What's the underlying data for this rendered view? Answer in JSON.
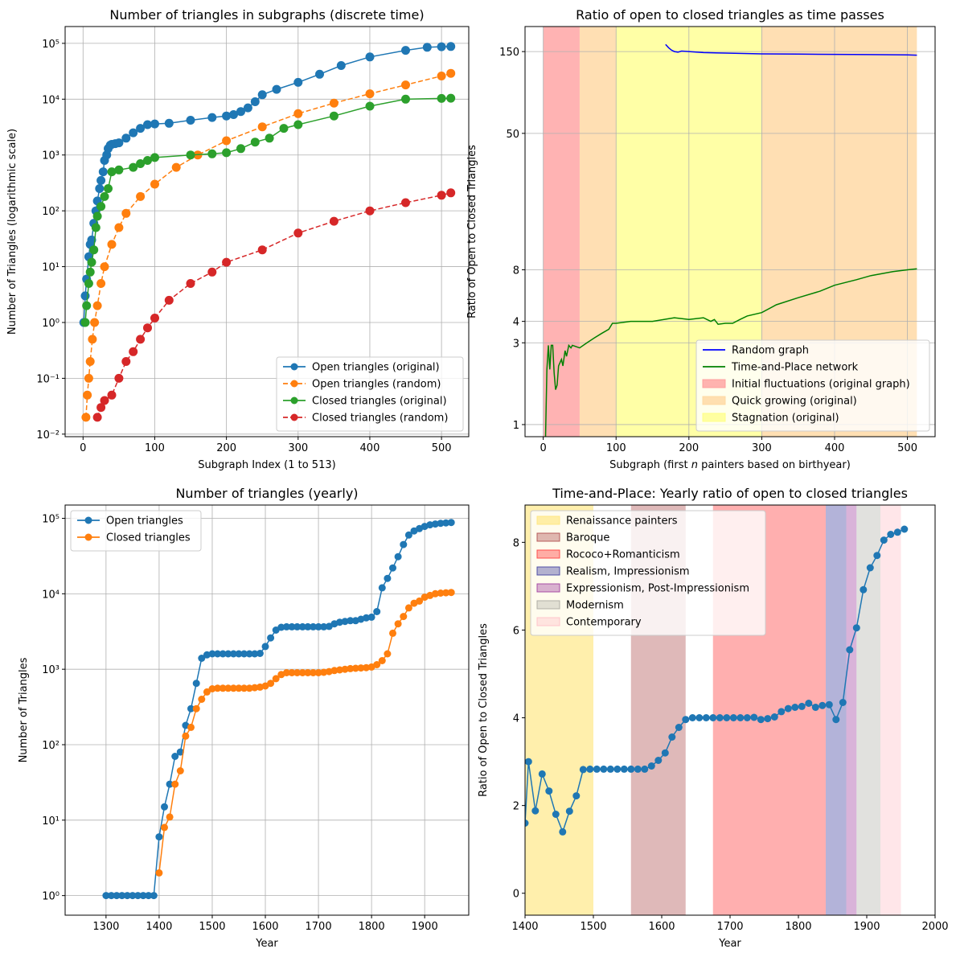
{
  "chart_data": [
    {
      "type": "line",
      "title": "Number of triangles in subgraphs (discrete time)",
      "xlabel": "Subgraph Index (1 to 513)",
      "ylabel": "Number of Triangles (logarithmic scale)",
      "xlim": [
        -25,
        538
      ],
      "ylim": [
        0.009,
        200000
      ],
      "yscale": "log",
      "grid": true,
      "legend_position": "lower right",
      "xticks": [
        0,
        100,
        200,
        300,
        400,
        500
      ],
      "xtick_labels": [
        "0",
        "100",
        "200",
        "300",
        "400",
        "500"
      ],
      "yticks": [
        0.01,
        0.1,
        1,
        10,
        100,
        1000,
        10000,
        100000
      ],
      "ytick_labels": [
        "10⁻²",
        "10⁻¹",
        "10⁰",
        "10¹",
        "10²",
        "10³",
        "10⁴",
        "10⁵"
      ],
      "series": [
        {
          "name": "Open triangles (original)",
          "color": "#1f77b4",
          "style": "solid-marker",
          "x": [
            1,
            3,
            5,
            8,
            10,
            12,
            15,
            18,
            20,
            23,
            25,
            28,
            30,
            33,
            35,
            38,
            40,
            45,
            50,
            60,
            70,
            80,
            90,
            100,
            120,
            150,
            180,
            200,
            210,
            220,
            230,
            240,
            250,
            270,
            300,
            330,
            360,
            400,
            450,
            480,
            500,
            513
          ],
          "y": [
            1,
            3,
            6,
            15,
            25,
            30,
            60,
            100,
            150,
            250,
            350,
            500,
            800,
            1000,
            1300,
            1500,
            1550,
            1600,
            1650,
            2000,
            2500,
            3000,
            3500,
            3600,
            3700,
            4200,
            4700,
            5000,
            5300,
            6000,
            7000,
            9000,
            12000,
            15000,
            20000,
            28000,
            40000,
            57000,
            75000,
            85000,
            87000,
            88000
          ]
        },
        {
          "name": "Open triangles (random)",
          "color": "#ff7f0e",
          "style": "dashed-marker",
          "x": [
            4,
            6,
            8,
            10,
            13,
            16,
            20,
            25,
            30,
            40,
            50,
            60,
            80,
            100,
            130,
            160,
            200,
            250,
            300,
            350,
            400,
            450,
            500,
            513
          ],
          "y": [
            0.02,
            0.05,
            0.1,
            0.2,
            0.5,
            1,
            2,
            5,
            10,
            25,
            50,
            90,
            180,
            300,
            600,
            1000,
            1800,
            3200,
            5500,
            8500,
            12500,
            18000,
            26000,
            29000
          ]
        },
        {
          "name": "Closed triangles (original)",
          "color": "#2ca02c",
          "style": "solid-marker",
          "x": [
            3,
            5,
            8,
            10,
            12,
            15,
            18,
            20,
            25,
            30,
            35,
            40,
            50,
            70,
            80,
            90,
            100,
            150,
            180,
            200,
            220,
            240,
            260,
            280,
            300,
            350,
            400,
            450,
            500,
            513
          ],
          "y": [
            1,
            2,
            5,
            8,
            12,
            20,
            50,
            80,
            120,
            180,
            250,
            500,
            540,
            600,
            700,
            800,
            900,
            1000,
            1050,
            1100,
            1300,
            1700,
            2000,
            3000,
            3500,
            5000,
            7500,
            10000,
            10300,
            10400
          ]
        },
        {
          "name": "Closed triangles (random)",
          "color": "#d62728",
          "style": "dashed-marker",
          "x": [
            20,
            25,
            30,
            40,
            50,
            60,
            70,
            80,
            90,
            100,
            120,
            150,
            180,
            200,
            250,
            300,
            350,
            400,
            450,
            500,
            513
          ],
          "y": [
            0.02,
            0.03,
            0.04,
            0.05,
            0.1,
            0.2,
            0.3,
            0.5,
            0.8,
            1.2,
            2.5,
            5,
            8,
            12,
            20,
            40,
            65,
            100,
            140,
            190,
            210
          ]
        }
      ]
    },
    {
      "type": "line",
      "title": "Ratio of open to closed triangles as time passes",
      "xlabel_prefix": "Subgraph (first ",
      "xlabel_var": "n",
      "xlabel_suffix": " painters based on birthyear)",
      "ylabel": "Ratio of Open to Closed Triangles",
      "xlim": [
        -25,
        538
      ],
      "yscale": "log",
      "ylim": [
        0.85,
        210
      ],
      "grid": true,
      "legend_position": "lower right",
      "xticks": [
        0,
        100,
        200,
        300,
        400,
        500
      ],
      "xtick_labels": [
        "0",
        "100",
        "200",
        "300",
        "400",
        "500"
      ],
      "yticks": [
        1,
        3,
        4,
        8,
        50,
        150
      ],
      "ytick_labels": [
        "1",
        "3",
        "4",
        "8",
        "50",
        "150"
      ],
      "bands": [
        {
          "name": "Initial fluctuations (original graph)",
          "from": 0,
          "to": 50,
          "color": "#ff9999",
          "opacity": 0.75
        },
        {
          "name": "Quick growing (original)",
          "from": 50,
          "to": 100,
          "color": "#ffd7a0",
          "opacity": 0.8
        },
        {
          "name": "Stagnation (original)",
          "from": 100,
          "to": 300,
          "color": "#ffff80",
          "opacity": 0.7
        },
        {
          "name": "Quick growing (original)",
          "from": 300,
          "to": 513,
          "color": "#ffd7a0",
          "opacity": 0.8
        }
      ],
      "series": [
        {
          "name": "Random graph",
          "color": "#0000ff",
          "x": [
            168,
            172,
            176,
            180,
            185,
            190,
            200,
            220,
            250,
            300,
            350,
            400,
            450,
            500,
            513
          ],
          "y": [
            165,
            158,
            153,
            150,
            149,
            151,
            150,
            148,
            147,
            145.5,
            145,
            144.5,
            144,
            143.5,
            143
          ]
        },
        {
          "name": "Time-and-Place network",
          "color": "#008000",
          "x": [
            3,
            5,
            7,
            9,
            11,
            13,
            15,
            17,
            19,
            21,
            23,
            25,
            27,
            30,
            32,
            35,
            38,
            40,
            50,
            60,
            70,
            80,
            90,
            95,
            100,
            120,
            150,
            180,
            200,
            220,
            230,
            235,
            240,
            250,
            260,
            270,
            280,
            300,
            320,
            350,
            380,
            400,
            430,
            450,
            480,
            500,
            513
          ],
          "y": [
            0.8,
            2.1,
            2.9,
            2.1,
            2.9,
            2.9,
            2.0,
            1.6,
            1.7,
            2.2,
            2.3,
            2.4,
            2.2,
            2.7,
            2.5,
            2.9,
            2.8,
            2.9,
            2.8,
            3.0,
            3.2,
            3.4,
            3.6,
            3.9,
            3.9,
            4.0,
            4.0,
            4.2,
            4.1,
            4.2,
            4.0,
            4.1,
            3.85,
            3.9,
            3.9,
            4.1,
            4.3,
            4.5,
            5.0,
            5.5,
            6.0,
            6.5,
            7.0,
            7.4,
            7.8,
            8.0,
            8.1
          ]
        }
      ]
    },
    {
      "type": "line",
      "title": "Number of triangles (yearly)",
      "xlabel": "Year",
      "ylabel": "Number of Triangles",
      "xlim": [
        1223,
        1983
      ],
      "yscale": "log",
      "ylim": [
        0.55,
        150000
      ],
      "grid": true,
      "legend_position": "upper left",
      "xticks": [
        1300,
        1400,
        1500,
        1600,
        1700,
        1800,
        1900
      ],
      "xtick_labels": [
        "1300",
        "1400",
        "1500",
        "1600",
        "1700",
        "1800",
        "1900"
      ],
      "yticks": [
        1,
        10,
        100,
        1000,
        10000,
        100000
      ],
      "ytick_labels": [
        "10⁰",
        "10¹",
        "10²",
        "10³",
        "10⁴",
        "10⁵"
      ],
      "series": [
        {
          "name": "Open triangles",
          "color": "#1f77b4",
          "x": [
            1290,
            1300,
            1310,
            1320,
            1330,
            1340,
            1350,
            1360,
            1370,
            1380,
            1390,
            1400,
            1410,
            1420,
            1430,
            1440,
            1450,
            1460,
            1470,
            1480,
            1490,
            1500,
            1510,
            1520,
            1530,
            1540,
            1550,
            1560,
            1570,
            1580,
            1590,
            1600,
            1610,
            1620,
            1630,
            1640,
            1650,
            1660,
            1670,
            1680,
            1690,
            1700,
            1710,
            1720,
            1730,
            1740,
            1750,
            1760,
            1770,
            1780,
            1790,
            1800,
            1810,
            1820,
            1830,
            1840,
            1850,
            1860,
            1870,
            1880,
            1890,
            1900,
            1910,
            1920,
            1930,
            1940,
            1950
          ],
          "y": [
            null,
            1,
            1,
            1,
            1,
            1,
            1,
            1,
            1,
            1,
            1,
            6,
            15,
            30,
            70,
            80,
            180,
            300,
            650,
            1400,
            1550,
            1600,
            1600,
            1600,
            1600,
            1600,
            1600,
            1600,
            1600,
            1600,
            1620,
            2000,
            2600,
            3300,
            3600,
            3650,
            3650,
            3650,
            3650,
            3650,
            3650,
            3650,
            3650,
            3700,
            4000,
            4200,
            4300,
            4400,
            4400,
            4600,
            4800,
            4900,
            5800,
            12000,
            16000,
            22000,
            31000,
            45000,
            60000,
            68000,
            73000,
            78000,
            82000,
            84000,
            86000,
            87000,
            88000
          ]
        },
        {
          "name": "Closed triangles",
          "color": "#ff7f0e",
          "x": [
            1400,
            1410,
            1420,
            1430,
            1440,
            1450,
            1460,
            1470,
            1480,
            1490,
            1500,
            1510,
            1520,
            1530,
            1540,
            1550,
            1560,
            1570,
            1580,
            1590,
            1600,
            1610,
            1620,
            1630,
            1640,
            1650,
            1660,
            1670,
            1680,
            1690,
            1700,
            1710,
            1720,
            1730,
            1740,
            1750,
            1760,
            1770,
            1780,
            1790,
            1800,
            1810,
            1820,
            1830,
            1840,
            1850,
            1860,
            1870,
            1880,
            1890,
            1900,
            1910,
            1920,
            1930,
            1940,
            1950
          ],
          "y": [
            2,
            8,
            11,
            30,
            45,
            130,
            170,
            300,
            400,
            500,
            550,
            560,
            560,
            560,
            560,
            560,
            560,
            560,
            570,
            580,
            600,
            650,
            750,
            850,
            900,
            900,
            900,
            900,
            900,
            900,
            900,
            910,
            930,
            960,
            980,
            1000,
            1020,
            1030,
            1040,
            1050,
            1070,
            1150,
            1300,
            1600,
            3000,
            4000,
            5000,
            6500,
            7500,
            8000,
            9000,
            9500,
            10000,
            10200,
            10300,
            10400
          ]
        }
      ]
    },
    {
      "type": "line",
      "title": "Time-and-Place: Yearly ratio of open to closed triangles",
      "xlabel": "Year",
      "ylabel": "Ratio of Open to Closed Triangles",
      "xlim": [
        1400,
        2000
      ],
      "ylim": [
        -0.5,
        8.85
      ],
      "grid": false,
      "legend_position": "upper left",
      "xticks": [
        1400,
        1500,
        1600,
        1700,
        1800,
        1900,
        2000
      ],
      "xtick_labels": [
        "1400",
        "1500",
        "1600",
        "1700",
        "1800",
        "1900",
        "2000"
      ],
      "yticks": [
        0,
        2,
        4,
        6,
        8
      ],
      "ytick_labels": [
        "0",
        "2",
        "4",
        "6",
        "8"
      ],
      "bands": [
        {
          "name": "Renaissance painters",
          "from": 1400,
          "to": 1500,
          "color": "#ffe680",
          "opacity": 0.65
        },
        {
          "name": "Baroque",
          "from": 1555,
          "to": 1635,
          "color": "#b05050",
          "opacity": 0.4
        },
        {
          "name": "Rococo+Romanticism",
          "from": 1675,
          "to": 1840,
          "color": "#ff4040",
          "opacity": 0.42
        },
        {
          "name": "Realism, Impressionism",
          "from": 1840,
          "to": 1870,
          "color": "#4040a0",
          "opacity": 0.4
        },
        {
          "name": "Expressionism, Post-Impressionism",
          "from": 1870,
          "to": 1885,
          "color": "#a040a0",
          "opacity": 0.4
        },
        {
          "name": "Modernism",
          "from": 1885,
          "to": 1920,
          "color": "#a8a8a0",
          "opacity": 0.35
        },
        {
          "name": "Contemporary",
          "from": 1920,
          "to": 1950,
          "color": "#ffc0c8",
          "opacity": 0.4
        }
      ],
      "series": [
        {
          "name": "",
          "color": "#1f77b4",
          "x": [
            1400,
            1405,
            1415,
            1425,
            1435,
            1445,
            1455,
            1465,
            1475,
            1485,
            1495,
            1505,
            1515,
            1525,
            1535,
            1545,
            1555,
            1565,
            1575,
            1585,
            1595,
            1605,
            1615,
            1625,
            1635,
            1645,
            1655,
            1665,
            1675,
            1685,
            1695,
            1705,
            1715,
            1725,
            1735,
            1745,
            1755,
            1765,
            1775,
            1785,
            1795,
            1805,
            1815,
            1825,
            1835,
            1845,
            1855,
            1865,
            1875,
            1885,
            1895,
            1905,
            1915,
            1925,
            1935,
            1945,
            1955
          ],
          "y": [
            1.6,
            3.0,
            1.88,
            2.72,
            2.33,
            1.8,
            1.4,
            1.87,
            2.22,
            2.82,
            2.83,
            2.83,
            2.83,
            2.83,
            2.83,
            2.83,
            2.83,
            2.83,
            2.83,
            2.9,
            3.03,
            3.2,
            3.56,
            3.78,
            3.96,
            4.0,
            4.0,
            4.0,
            4.0,
            4.0,
            4.0,
            4.0,
            4.0,
            4.0,
            4.01,
            3.96,
            3.98,
            4.02,
            4.14,
            4.21,
            4.24,
            4.26,
            4.33,
            4.24,
            4.28,
            4.3,
            3.96,
            4.35,
            5.55,
            6.05,
            6.92,
            7.42,
            7.7,
            8.05,
            8.18,
            8.23,
            8.3
          ]
        }
      ]
    }
  ]
}
